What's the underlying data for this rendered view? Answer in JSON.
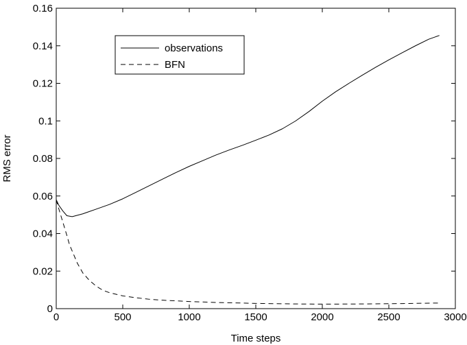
{
  "chart_data": {
    "type": "line",
    "title": "",
    "xlabel": "Time steps",
    "ylabel": "RMS error",
    "xlim": [
      0,
      3000
    ],
    "ylim": [
      0,
      0.16
    ],
    "xticks": [
      0,
      500,
      1000,
      1500,
      2000,
      2500,
      3000
    ],
    "yticks": [
      0,
      0.02,
      0.04,
      0.06,
      0.08,
      0.1,
      0.12,
      0.14,
      0.16
    ],
    "xtick_labels": [
      "0",
      "500",
      "1000",
      "1500",
      "2000",
      "2500",
      "3000"
    ],
    "ytick_labels": [
      "0",
      "0.02",
      "0.04",
      "0.06",
      "0.08",
      "0.1",
      "0.12",
      "0.14",
      "0.16"
    ],
    "grid": false,
    "legend_position": "top-left",
    "series": [
      {
        "name": "observations",
        "style": "solid",
        "color": "#000000",
        "x": [
          0,
          20,
          50,
          80,
          120,
          200,
          300,
          400,
          500,
          600,
          700,
          800,
          900,
          1000,
          1100,
          1200,
          1300,
          1400,
          1500,
          1600,
          1700,
          1800,
          1900,
          2000,
          2100,
          2200,
          2300,
          2400,
          2500,
          2600,
          2700,
          2800,
          2880
        ],
        "y": [
          0.058,
          0.055,
          0.052,
          0.0495,
          0.049,
          0.0505,
          0.053,
          0.0555,
          0.0585,
          0.062,
          0.0655,
          0.069,
          0.0725,
          0.0758,
          0.0788,
          0.0818,
          0.0845,
          0.087,
          0.0897,
          0.0925,
          0.0958,
          0.1,
          0.105,
          0.1105,
          0.1155,
          0.12,
          0.1243,
          0.1285,
          0.1325,
          0.1363,
          0.14,
          0.1435,
          0.1455
        ]
      },
      {
        "name": "BFN",
        "style": "dashed",
        "color": "#000000",
        "x": [
          0,
          20,
          50,
          80,
          100,
          130,
          160,
          200,
          250,
          300,
          350,
          400,
          500,
          600,
          700,
          800,
          1000,
          1200,
          1500,
          1800,
          2000,
          2300,
          2600,
          2880
        ],
        "y": [
          0.058,
          0.053,
          0.046,
          0.039,
          0.034,
          0.029,
          0.024,
          0.019,
          0.015,
          0.012,
          0.0098,
          0.0085,
          0.0068,
          0.0058,
          0.005,
          0.0045,
          0.0038,
          0.0033,
          0.0028,
          0.0025,
          0.0024,
          0.0025,
          0.0027,
          0.003
        ]
      }
    ]
  }
}
